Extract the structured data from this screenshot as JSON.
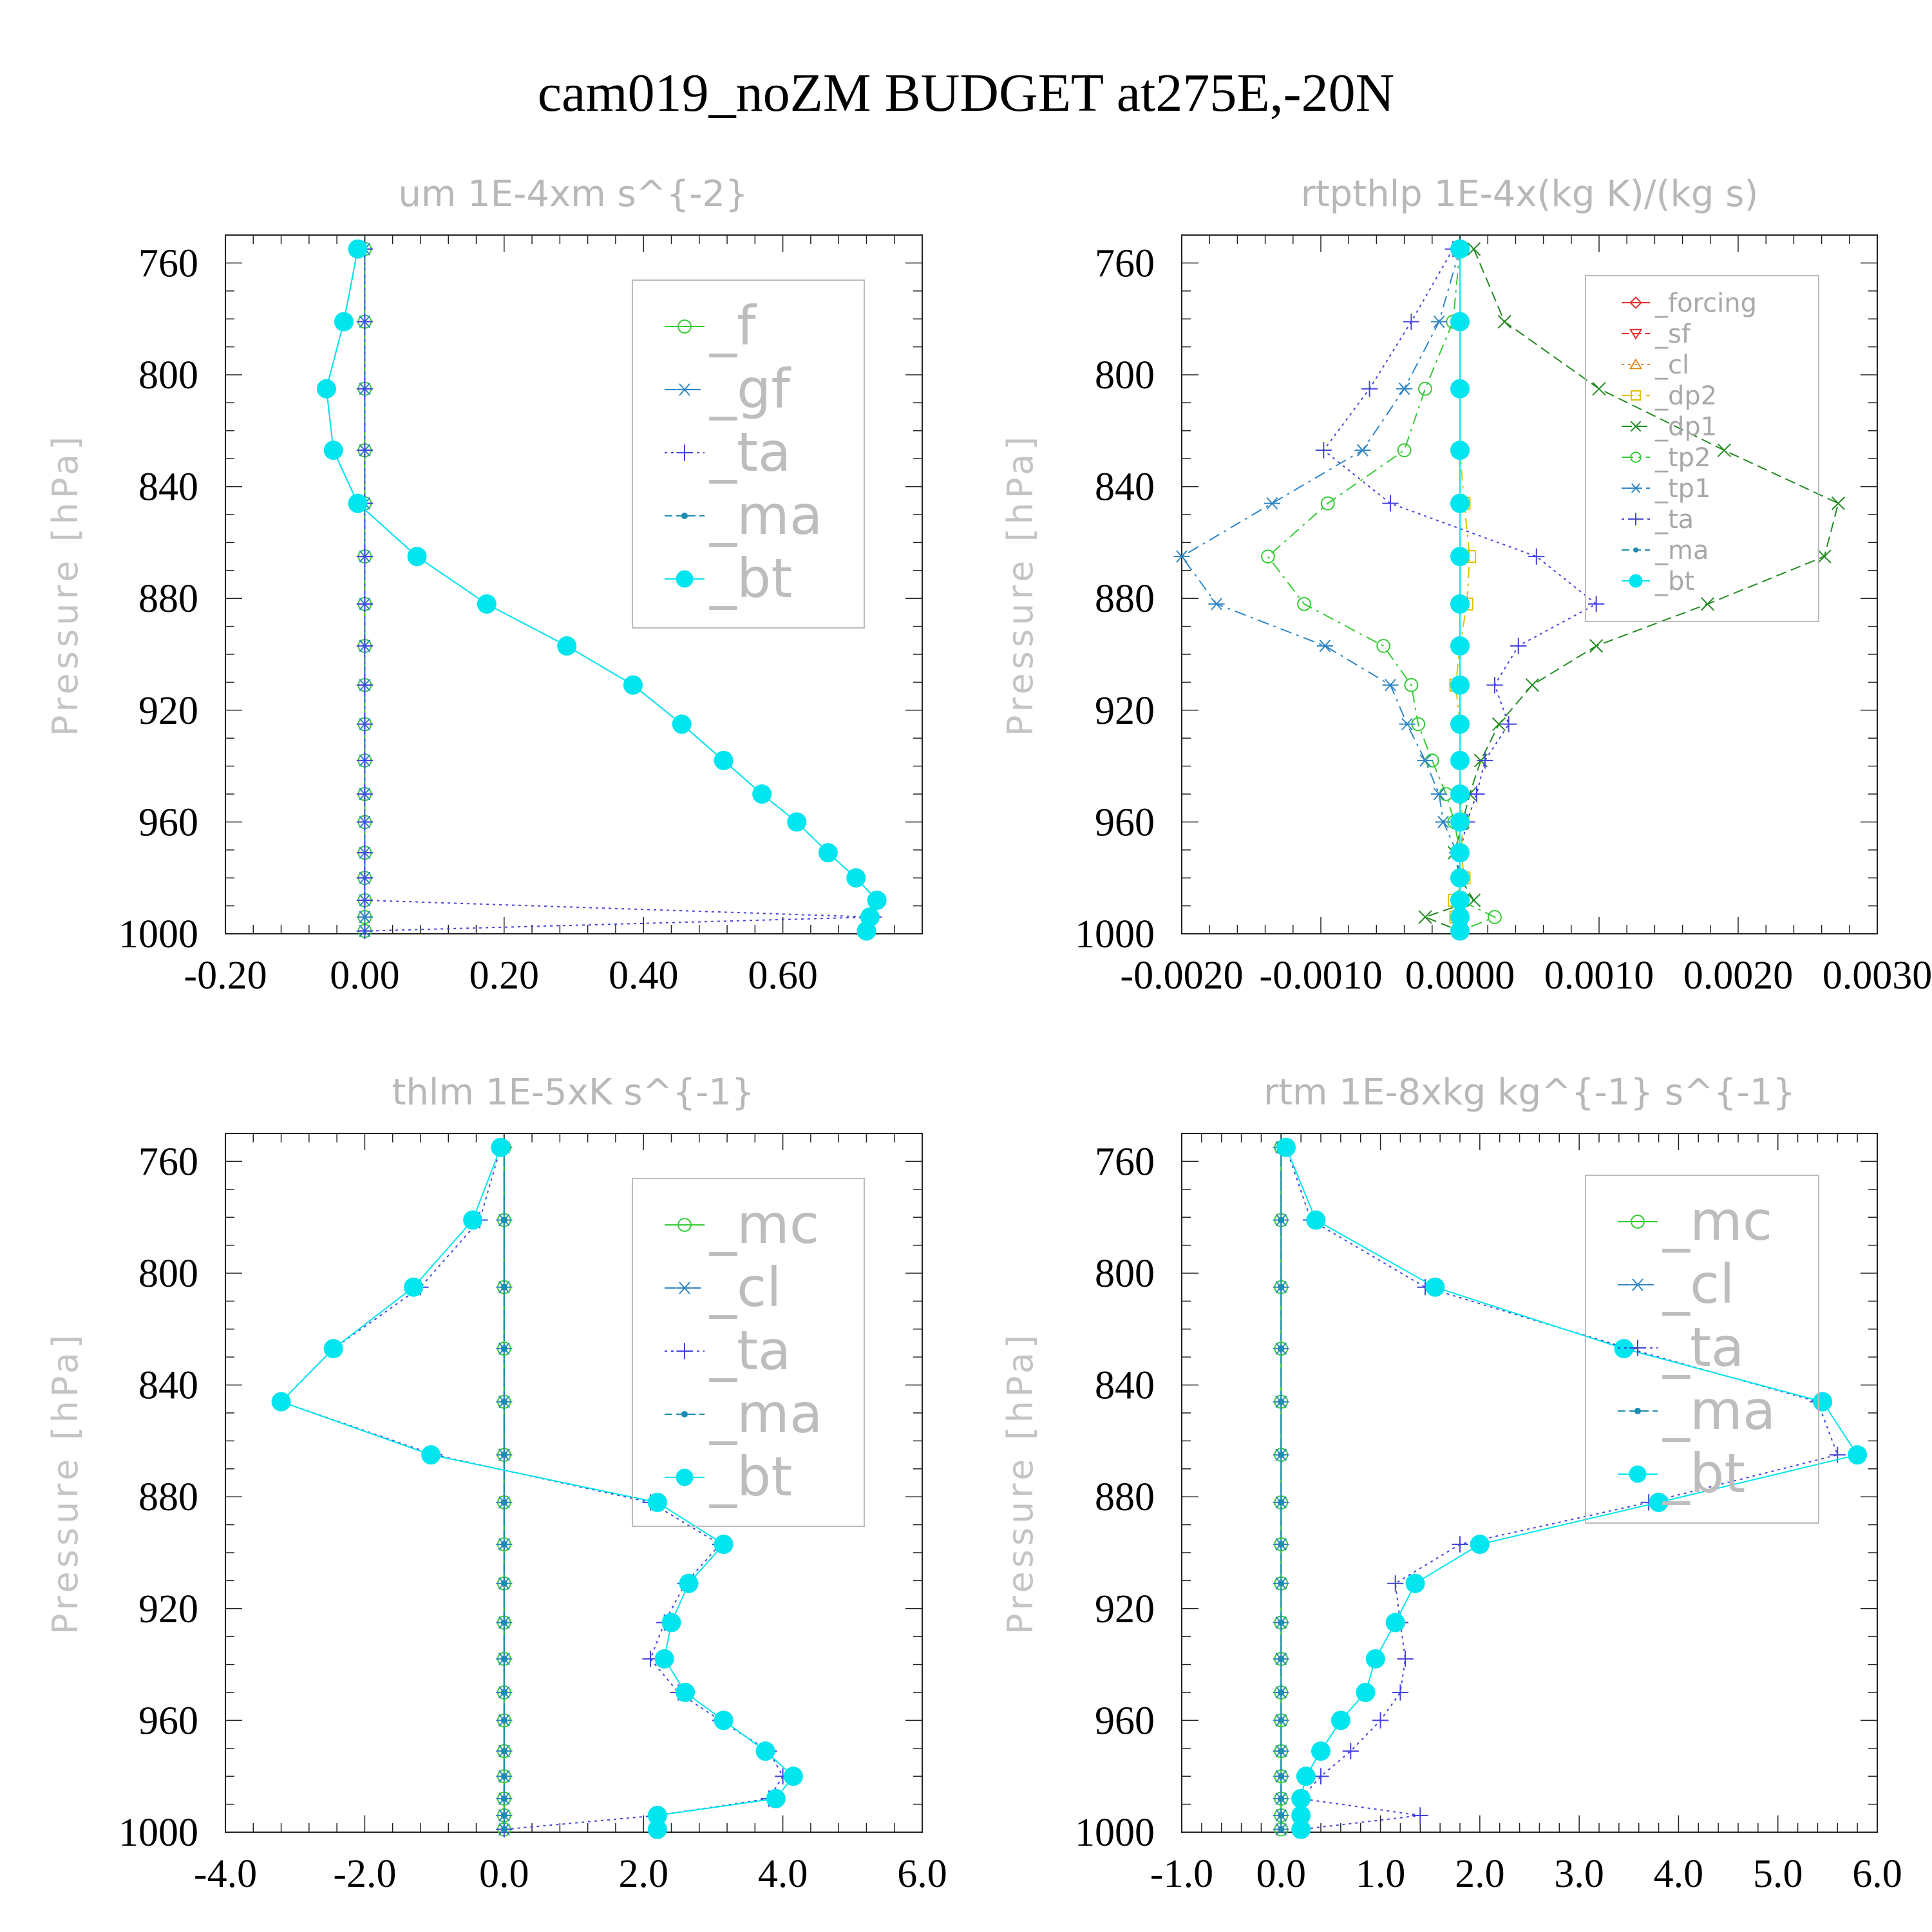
{
  "title": "cam019_noZM  BUDGET at275E,-20N",
  "colors": {
    "green": "#33cc33",
    "steel": "#2f85c6",
    "blue": "#4444dd",
    "teal": "#1a8cb0",
    "cyan": "#00e5ee",
    "red": "#e83030",
    "orange": "#e88a1a",
    "yellow": "#e0c000",
    "dkgreen": "#228b22",
    "axis": "#222222",
    "grid": "#000000",
    "label": "#b8b8b8"
  },
  "chart_data": [
    {
      "type": "line",
      "title": "um  1E-4xm s^{-2}",
      "ylabel": "Pressure [hPa]",
      "xlim": [
        -0.2,
        0.8
      ],
      "ylim": [
        1000,
        750
      ],
      "y_reversed": true,
      "xticks": [
        "-0.20",
        "0.00",
        "0.20",
        "0.40",
        "0.60"
      ],
      "xtick_values": [
        -0.2,
        0.0,
        0.2,
        0.4,
        0.6
      ],
      "yticks": [
        760,
        800,
        840,
        880,
        920,
        960,
        1000
      ],
      "legend_loc": "top-right",
      "legend_style": "big",
      "levels": [
        755,
        781,
        805,
        827,
        846,
        865,
        882,
        897,
        911,
        925,
        938,
        950,
        960,
        971,
        980,
        988,
        994,
        999
      ],
      "series": [
        {
          "name": "_f",
          "color": "#33cc33",
          "dash": "none",
          "marker": "circle-open",
          "values": [
            0,
            0,
            0,
            0,
            0,
            0,
            0,
            0,
            0,
            0,
            0,
            0,
            0,
            0,
            0,
            0,
            0,
            0
          ]
        },
        {
          "name": "_gf",
          "color": "#2f85c6",
          "dash": "18 8 4 8",
          "marker": "asterisk",
          "values": [
            0,
            0,
            0,
            0,
            0,
            0,
            0,
            0,
            0,
            0,
            0,
            0,
            0,
            0,
            0,
            0,
            0,
            0
          ]
        },
        {
          "name": "_ta",
          "color": "#4444dd",
          "dash": "4 6",
          "marker": "plus",
          "values": [
            0,
            0,
            0,
            0,
            0,
            0,
            0,
            0,
            0,
            0,
            0,
            0,
            0,
            0,
            0,
            0,
            0.73,
            0
          ]
        },
        {
          "name": "_ma",
          "color": "#1a8cb0",
          "dash": "12 6",
          "marker": "dot",
          "values": [
            -0.01,
            -0.03,
            -0.055,
            -0.045,
            -0.01,
            0.075,
            0.175,
            0.29,
            0.385,
            0.455,
            0.515,
            0.57,
            0.62,
            0.665,
            0.705,
            0.735,
            0.725,
            0.72
          ]
        },
        {
          "name": "_bt",
          "color": "#00e5ee",
          "dash": "none",
          "marker": "filled-circle",
          "values": [
            -0.01,
            -0.03,
            -0.055,
            -0.045,
            -0.01,
            0.075,
            0.175,
            0.29,
            0.385,
            0.455,
            0.515,
            0.57,
            0.62,
            0.665,
            0.705,
            0.735,
            0.725,
            0.72
          ]
        }
      ]
    },
    {
      "type": "line",
      "title": "rtpthlp  1E-4x(kg K)/(kg s)",
      "ylabel": "Pressure [hPa]",
      "xlim": [
        -0.002,
        0.003
      ],
      "ylim": [
        1000,
        750
      ],
      "y_reversed": true,
      "xticks": [
        "-0.0020",
        "-0.0010",
        "0.0000",
        "0.0010",
        "0.0020",
        "0.0030"
      ],
      "xtick_values": [
        -0.002,
        -0.001,
        0.0,
        0.001,
        0.002,
        0.003
      ],
      "yticks": [
        760,
        800,
        840,
        880,
        920,
        960,
        1000
      ],
      "legend_loc": "top-right",
      "legend_style": "small",
      "levels": [
        755,
        781,
        805,
        827,
        846,
        865,
        882,
        897,
        911,
        925,
        938,
        950,
        960,
        971,
        980,
        988,
        994,
        999
      ],
      "series": [
        {
          "name": "_forcing",
          "color": "#e83030",
          "dash": "none",
          "marker": "diamond",
          "values": [
            0,
            0,
            0,
            0,
            0,
            0,
            0,
            0,
            0,
            0,
            0,
            0,
            0,
            0,
            0,
            0,
            0,
            0
          ]
        },
        {
          "name": "_sf",
          "color": "#e83030",
          "dash": "12 6",
          "marker": "triangle-down",
          "values": [
            0,
            0,
            0,
            0,
            0,
            0,
            0,
            0,
            0,
            0,
            0,
            0,
            0,
            0,
            0,
            0,
            0,
            0
          ]
        },
        {
          "name": "_cl",
          "color": "#e88a1a",
          "dash": "4 6",
          "marker": "triangle-up",
          "values": [
            0,
            0,
            0,
            0,
            0,
            0,
            0,
            0,
            0,
            0,
            0,
            0,
            0,
            0,
            0,
            0,
            0,
            0
          ]
        },
        {
          "name": "_dp2",
          "color": "#e0c000",
          "dash": "18 8 4 8",
          "marker": "square",
          "values": [
            0,
            0,
            0,
            0,
            3e-05,
            7e-05,
            5e-05,
            0,
            -3e-05,
            0,
            0,
            0,
            2e-05,
            1e-05,
            3e-05,
            -4e-05,
            -3e-05,
            0
          ]
        },
        {
          "name": "_dp1",
          "color": "#228b22",
          "dash": "16 8",
          "marker": "x",
          "values": [
            0.0001,
            0.00032,
            0.001,
            0.0019,
            0.00272,
            0.00262,
            0.00178,
            0.00098,
            0.00052,
            0.00028,
            0.00015,
            7e-05,
            2e-05,
            -4e-05,
            0,
            0.0001,
            -0.00025,
            0
          ]
        },
        {
          "name": "_tp2",
          "color": "#33cc33",
          "dash": "18 8 4 8",
          "marker": "circle-open",
          "values": [
            0,
            -5e-05,
            -0.00025,
            -0.0004,
            -0.00095,
            -0.00138,
            -0.00112,
            -0.00055,
            -0.00035,
            -0.0003,
            -0.0002,
            -0.0001,
            -4e-05,
            0,
            0,
            0,
            0.00025,
            0
          ]
        },
        {
          "name": "_tp1",
          "color": "#2f85c6",
          "dash": "18 8 4 8",
          "marker": "asterisk",
          "values": [
            0,
            -0.00015,
            -0.0004,
            -0.0007,
            -0.00135,
            -0.00205,
            -0.00175,
            -0.00097,
            -0.0005,
            -0.00038,
            -0.00025,
            -0.00015,
            -0.00012,
            -2e-05,
            0,
            0,
            0,
            0
          ]
        },
        {
          "name": "_ta",
          "color": "#4444dd",
          "dash": "4 6",
          "marker": "plus",
          "values": [
            -5e-05,
            -0.00035,
            -0.00065,
            -0.00098,
            -0.0005,
            0.00055,
            0.00098,
            0.00042,
            0.00025,
            0.00035,
            0.00018,
            0.00012,
            5e-05,
            0,
            0,
            0,
            0,
            0
          ]
        },
        {
          "name": "_ma",
          "color": "#1a8cb0",
          "dash": "12 6",
          "marker": "dot",
          "values": [
            0,
            0,
            0,
            0,
            0,
            0,
            0,
            0,
            0,
            0,
            0,
            0,
            0,
            0,
            0,
            0,
            0,
            0
          ]
        },
        {
          "name": "_bt",
          "color": "#00e5ee",
          "dash": "none",
          "marker": "filled-circle",
          "values": [
            0,
            0,
            0,
            0,
            0,
            0,
            0,
            0,
            0,
            0,
            0,
            0,
            0,
            0,
            0,
            0,
            0,
            0
          ]
        }
      ]
    },
    {
      "type": "line",
      "title": "thlm  1E-5xK s^{-1}",
      "ylabel": "Pressure [hPa]",
      "xlim": [
        -4.0,
        6.0
      ],
      "ylim": [
        1000,
        750
      ],
      "y_reversed": true,
      "xticks": [
        "-4.0",
        "-2.0",
        "0.0",
        "2.0",
        "4.0",
        "6.0"
      ],
      "xtick_values": [
        -4,
        -2,
        0,
        2,
        4,
        6
      ],
      "yticks": [
        760,
        800,
        840,
        880,
        920,
        960,
        1000
      ],
      "legend_loc": "top-right",
      "legend_style": "big",
      "levels": [
        755,
        781,
        805,
        827,
        846,
        865,
        882,
        897,
        911,
        925,
        938,
        950,
        960,
        971,
        980,
        988,
        994,
        999
      ],
      "series": [
        {
          "name": "_mc",
          "color": "#33cc33",
          "dash": "none",
          "marker": "circle-open",
          "values": [
            0,
            0,
            0,
            0,
            0,
            0,
            0,
            0,
            0,
            0,
            0,
            0,
            0,
            0,
            0,
            0,
            0,
            0
          ]
        },
        {
          "name": "_cl",
          "color": "#2f85c6",
          "dash": "18 8 4 8",
          "marker": "asterisk",
          "values": [
            0,
            0,
            0,
            0,
            0,
            0,
            0,
            0,
            0,
            0,
            0,
            0,
            0,
            0,
            0,
            0,
            0,
            0
          ]
        },
        {
          "name": "_ta",
          "color": "#4444dd",
          "dash": "4 6",
          "marker": "plus",
          "values": [
            -0.05,
            -0.35,
            -1.2,
            -2.45,
            -3.2,
            -1.0,
            2.1,
            3.1,
            2.6,
            2.3,
            2.1,
            2.5,
            3.1,
            3.8,
            4.0,
            3.8,
            2.2,
            0
          ]
        },
        {
          "name": "_ma",
          "color": "#1a8cb0",
          "dash": "12 6",
          "marker": "dot",
          "values": [
            0,
            0,
            0,
            0,
            0,
            0,
            0,
            0,
            0,
            0,
            0,
            0,
            0,
            0,
            0,
            0,
            0,
            0
          ]
        },
        {
          "name": "_bt",
          "color": "#00e5ee",
          "dash": "none",
          "marker": "filled-circle",
          "values": [
            -0.05,
            -0.45,
            -1.3,
            -2.45,
            -3.2,
            -1.05,
            2.2,
            3.15,
            2.65,
            2.4,
            2.3,
            2.6,
            3.15,
            3.75,
            4.15,
            3.9,
            2.2,
            2.2
          ]
        }
      ]
    },
    {
      "type": "line",
      "title": "rtm  1E-8xkg kg^{-1} s^{-1}",
      "ylabel": "Pressure [hPa]",
      "xlim": [
        -1.0,
        6.0
      ],
      "ylim": [
        1000,
        750
      ],
      "y_reversed": true,
      "xticks": [
        "-1.0",
        "0.0",
        "1.0",
        "2.0",
        "3.0",
        "4.0",
        "5.0",
        "6.0"
      ],
      "xtick_values": [
        -1,
        0,
        1,
        2,
        3,
        4,
        5,
        6
      ],
      "yticks": [
        760,
        800,
        840,
        880,
        920,
        960,
        1000
      ],
      "legend_loc": "top-right",
      "legend_style": "big",
      "levels": [
        755,
        781,
        805,
        827,
        846,
        865,
        882,
        897,
        911,
        925,
        938,
        950,
        960,
        971,
        980,
        988,
        994,
        999
      ],
      "series": [
        {
          "name": "_mc",
          "color": "#33cc33",
          "dash": "none",
          "marker": "circle-open",
          "values": [
            0,
            0,
            0,
            0,
            0,
            0,
            0,
            0,
            0,
            0,
            0,
            0,
            0,
            0,
            0,
            0,
            0,
            0
          ]
        },
        {
          "name": "_cl",
          "color": "#2f85c6",
          "dash": "18 8 4 8",
          "marker": "asterisk",
          "values": [
            0,
            0,
            0,
            0,
            0,
            0,
            0,
            0,
            0,
            0,
            0,
            0,
            0,
            0,
            0,
            0,
            0,
            0
          ]
        },
        {
          "name": "_ta",
          "color": "#4444dd",
          "dash": "4 6",
          "marker": "plus",
          "values": [
            0.05,
            0.3,
            1.45,
            3.5,
            5.4,
            5.6,
            3.7,
            1.8,
            1.15,
            1.2,
            1.25,
            1.2,
            1.0,
            0.7,
            0.4,
            0.2,
            1.4,
            0.2
          ]
        },
        {
          "name": "_ma",
          "color": "#1a8cb0",
          "dash": "12 6",
          "marker": "dot",
          "values": [
            0,
            0,
            0,
            0,
            0,
            0,
            0,
            0,
            0,
            0,
            0,
            0,
            0,
            0,
            0,
            0,
            0,
            0
          ]
        },
        {
          "name": "_bt",
          "color": "#00e5ee",
          "dash": "none",
          "marker": "filled-circle",
          "values": [
            0.05,
            0.35,
            1.55,
            3.45,
            5.45,
            5.8,
            3.8,
            2.0,
            1.35,
            1.15,
            0.95,
            0.85,
            0.6,
            0.4,
            0.25,
            0.2,
            0.2,
            0.2
          ]
        }
      ]
    }
  ]
}
